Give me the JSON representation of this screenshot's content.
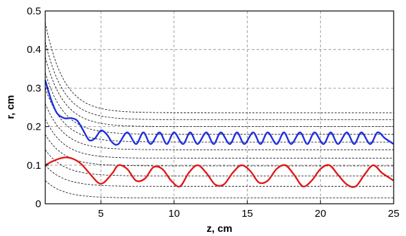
{
  "chart_data": {
    "type": "line",
    "xlabel": "z, cm",
    "ylabel": "r, cm",
    "xlim": [
      1.2,
      25
    ],
    "ylim": [
      0,
      0.5
    ],
    "x_ticks": [
      5,
      10,
      15,
      20,
      25
    ],
    "x_tick_labels": [
      "5",
      "10",
      "15",
      "20",
      "25"
    ],
    "y_ticks": [
      0,
      0.1,
      0.2,
      0.3,
      0.4,
      0.5
    ],
    "y_tick_labels": [
      "0",
      "0.1",
      "0.2",
      "0.3",
      "0.4",
      "0.5"
    ],
    "grid": true,
    "reference_curves": {
      "style": "dashed",
      "color": "#000000",
      "x_start": 1.2,
      "y_start": [
        0.06,
        0.1,
        0.14,
        0.18,
        0.22,
        0.26,
        0.3,
        0.34,
        0.38,
        0.42,
        0.47
      ],
      "y_end": [
        0.015,
        0.045,
        0.072,
        0.098,
        0.118,
        0.14,
        0.16,
        0.18,
        0.2,
        0.218,
        0.236
      ]
    },
    "series": [
      {
        "color": "#1f2fe0",
        "x": [
          1.2,
          1.6,
          2.0,
          2.5,
          3.0,
          3.4,
          3.8,
          4.2,
          4.6,
          5.0,
          5.4,
          5.8,
          6.2,
          6.8,
          7.4,
          7.9,
          8.4,
          9.0,
          9.5,
          10.0,
          10.6,
          11.1,
          11.6,
          12.2,
          12.7,
          13.2,
          13.8,
          14.3,
          14.8,
          15.4,
          15.9,
          16.4,
          17.0,
          17.5,
          18.0,
          18.6,
          19.1,
          19.6,
          20.2,
          20.7,
          21.2,
          21.8,
          22.3,
          22.8,
          23.4,
          23.9,
          24.4,
          25.0
        ],
        "y": [
          0.32,
          0.27,
          0.235,
          0.222,
          0.222,
          0.215,
          0.19,
          0.165,
          0.17,
          0.19,
          0.18,
          0.158,
          0.155,
          0.185,
          0.155,
          0.185,
          0.155,
          0.185,
          0.155,
          0.185,
          0.155,
          0.185,
          0.155,
          0.185,
          0.155,
          0.185,
          0.155,
          0.185,
          0.155,
          0.185,
          0.155,
          0.185,
          0.155,
          0.185,
          0.155,
          0.185,
          0.155,
          0.185,
          0.155,
          0.185,
          0.155,
          0.185,
          0.155,
          0.185,
          0.155,
          0.185,
          0.17,
          0.155
        ]
      },
      {
        "color": "#e01818",
        "x": [
          1.2,
          1.8,
          2.5,
          3.0,
          3.6,
          4.2,
          4.8,
          5.2,
          5.8,
          6.2,
          6.8,
          7.4,
          8.0,
          8.6,
          9.2,
          9.8,
          10.4,
          11.0,
          11.6,
          12.2,
          12.8,
          13.4,
          14.0,
          14.6,
          15.2,
          15.8,
          16.4,
          17.0,
          17.6,
          18.2,
          18.8,
          19.4,
          20.0,
          20.6,
          21.2,
          21.8,
          22.4,
          23.0,
          23.6,
          24.2,
          24.8,
          25.0
        ],
        "y": [
          0.1,
          0.112,
          0.12,
          0.118,
          0.105,
          0.08,
          0.055,
          0.055,
          0.08,
          0.1,
          0.09,
          0.06,
          0.065,
          0.095,
          0.09,
          0.06,
          0.045,
          0.08,
          0.1,
          0.08,
          0.05,
          0.05,
          0.08,
          0.1,
          0.085,
          0.055,
          0.06,
          0.09,
          0.1,
          0.075,
          0.045,
          0.06,
          0.09,
          0.1,
          0.075,
          0.05,
          0.045,
          0.075,
          0.1,
          0.08,
          0.065,
          0.06
        ]
      }
    ]
  }
}
